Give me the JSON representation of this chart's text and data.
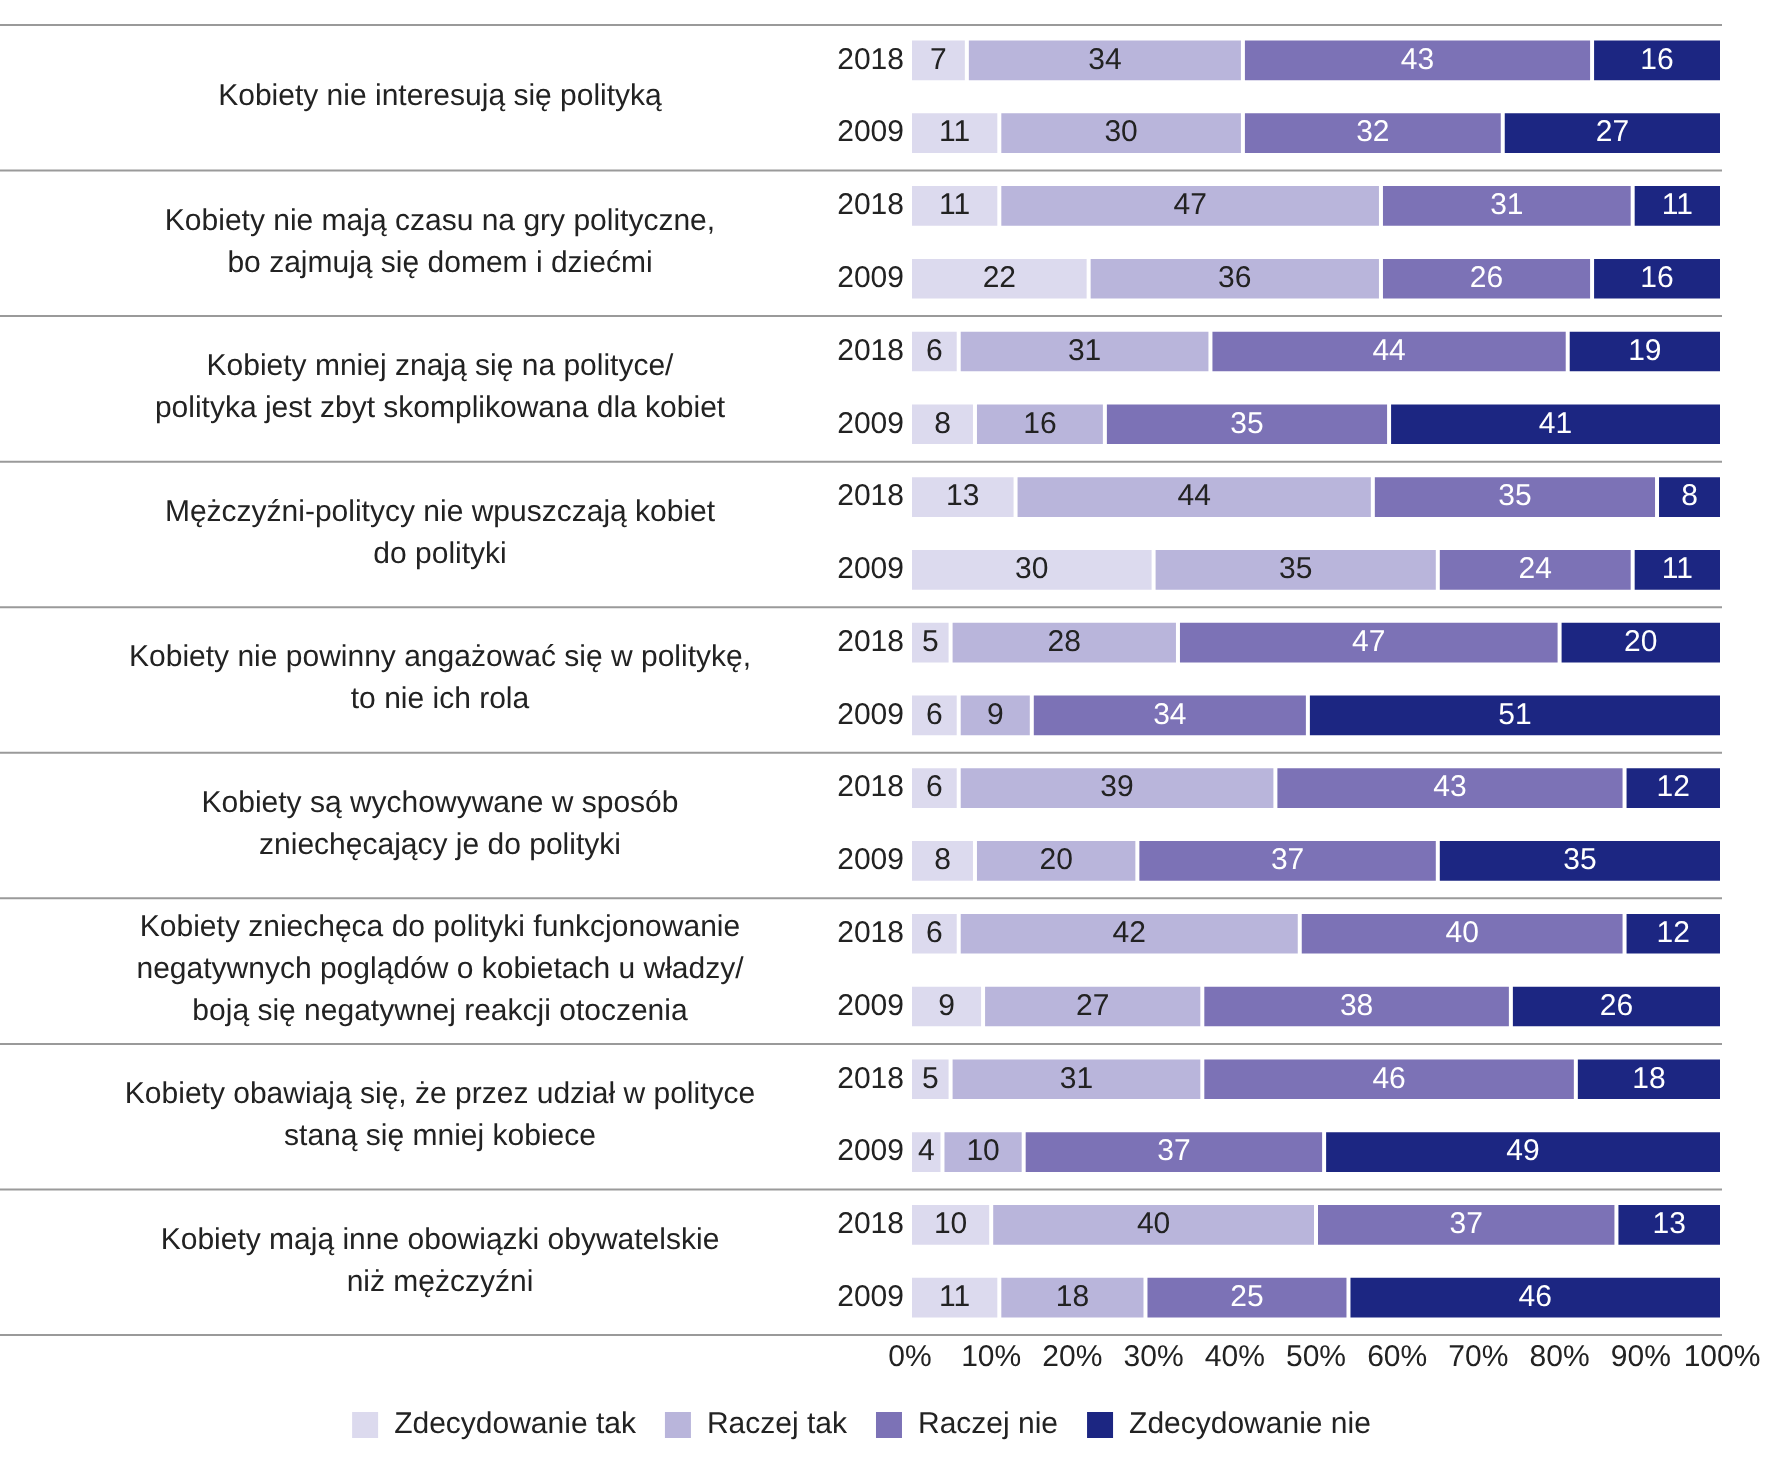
{
  "chart_data": {
    "type": "bar",
    "orientation": "horizontal",
    "stacked": true,
    "data_labels": true,
    "grid": false,
    "legend": "bottom",
    "categories": [
      "2018",
      "2009",
      "2018",
      "2009",
      "2018",
      "2009",
      "2018",
      "2009",
      "2018",
      "2009",
      "2018",
      "2009",
      "2018",
      "2009",
      "2018",
      "2009",
      "2018",
      "2009"
    ],
    "annotations": [
      "Kobiety nie interesują się polityką",
      "Kobiety nie mają czasu na gry polityczne,\nbo zajmują się domem i dziećmi",
      "Kobiety mniej znają się na polityce/\npolityka jest zbyt skomplikowana dla kobiet",
      "Mężczyźni-politycy nie wpuszczają kobiet\ndo polityki",
      "Kobiety nie powinny angażować się w politykę,\nto nie ich rola",
      "Kobiety są wychowywane w sposób\nzniechęcający je do polityki",
      "Kobiety zniechęca do polityki funkcjonowanie\nnegatywnych poglądów o kobietach u władzy/\nboją się negatywnej reakcji otoczenia",
      "Kobiety obawiają się, że przez udział w polityce\nstaną się mniej kobiece",
      "Kobiety mają inne obowiązki obywatelskie\nniż mężczyźni"
    ],
    "xlim": [
      0,
      100
    ],
    "xticks": [
      {
        "value": 0,
        "label": "0%"
      },
      {
        "value": 10,
        "label": "10%"
      },
      {
        "value": 20,
        "label": "20%"
      },
      {
        "value": 30,
        "label": "30%"
      },
      {
        "value": 40,
        "label": "40%"
      },
      {
        "value": 50,
        "label": "50%"
      },
      {
        "value": 60,
        "label": "60%"
      },
      {
        "value": 70,
        "label": "70%"
      },
      {
        "value": 80,
        "label": "80%"
      },
      {
        "value": 90,
        "label": "90%"
      },
      {
        "value": 100,
        "label": "100%"
      }
    ],
    "series": [
      {
        "name": "Zdecydowanie tak",
        "color": "#dcdaee",
        "values": [
          7,
          11,
          11,
          22,
          6,
          8,
          13,
          30,
          5,
          6,
          6,
          8,
          6,
          9,
          5,
          4,
          10,
          11
        ]
      },
      {
        "name": "Raczej tak",
        "color": "#b9b5db",
        "values": [
          34,
          30,
          47,
          36,
          31,
          16,
          44,
          35,
          28,
          9,
          39,
          20,
          42,
          27,
          31,
          10,
          40,
          18
        ]
      },
      {
        "name": "Raczej nie",
        "color": "#7c72b6",
        "values": [
          43,
          32,
          31,
          26,
          44,
          35,
          35,
          24,
          47,
          34,
          43,
          37,
          40,
          38,
          46,
          37,
          37,
          25
        ]
      },
      {
        "name": "Zdecydowanie nie",
        "color": "#1c2682",
        "values": [
          16,
          27,
          11,
          16,
          19,
          41,
          8,
          11,
          20,
          51,
          12,
          35,
          12,
          26,
          18,
          49,
          13,
          46
        ]
      }
    ]
  }
}
